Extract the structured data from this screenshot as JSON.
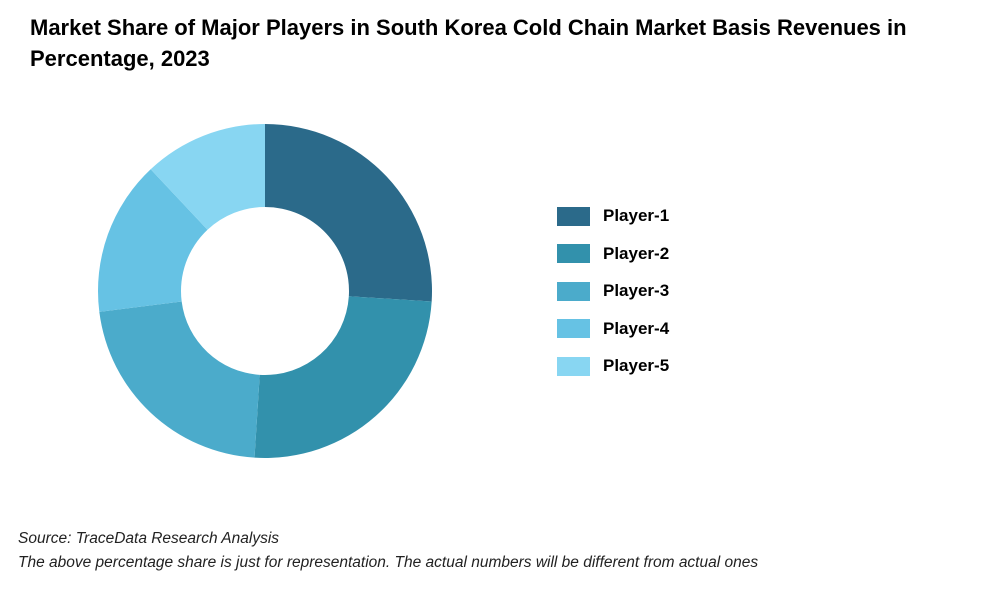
{
  "chart_data": {
    "type": "pie",
    "title": "Market Share of Major Players in South Korea Cold Chain Market Basis Revenues in Percentage, 2023",
    "categories": [
      "Player-1",
      "Player-2",
      "Player-3",
      "Player-4",
      "Player-5"
    ],
    "values": [
      26,
      25,
      22,
      15,
      12
    ],
    "colors": [
      "#2b6a8a",
      "#3291ac",
      "#4babcb",
      "#66c2e4",
      "#88d6f2"
    ],
    "donut": true,
    "legend_position": "right",
    "data_labels": false
  },
  "footer": {
    "source": "Source: TraceData Research Analysis",
    "note": "The above percentage share is just for representation. The actual numbers will be different from actual ones"
  }
}
